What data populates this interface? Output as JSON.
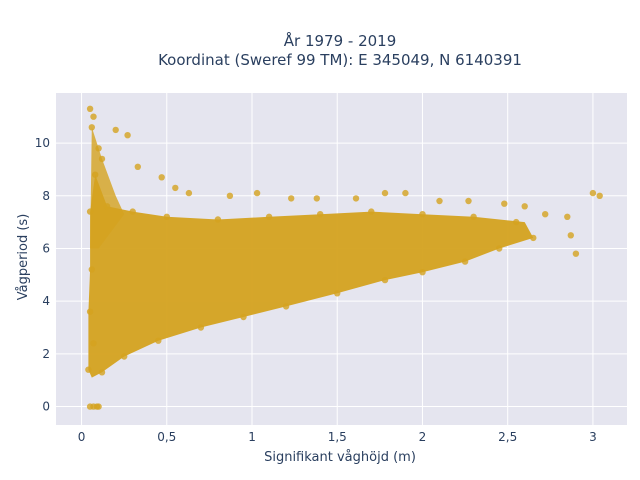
{
  "chart_data": {
    "type": "scatter",
    "title_line1": "År 1979 - 2019",
    "title_line2": "Koordinat (Sweref 99 TM): E 345049, N 6140391",
    "xlabel": "Signifikant våghöjd (m)",
    "ylabel": "Vågperiod (s)",
    "xlim": [
      -0.15,
      3.2
    ],
    "ylim": [
      -0.7,
      11.9
    ],
    "x_ticks": [
      0,
      0.5,
      1,
      1.5,
      2,
      2.5,
      3
    ],
    "x_tick_labels": [
      "0",
      "0,5",
      "1",
      "1,5",
      "2",
      "2,5",
      "3"
    ],
    "y_ticks": [
      0,
      2,
      4,
      6,
      8,
      10
    ],
    "y_tick_labels": [
      "0",
      "2",
      "4",
      "6",
      "8",
      "10"
    ],
    "marker_color": "#D4A21F",
    "background_color": "#E5E5EF",
    "grid": true,
    "series": [
      {
        "points": [
          [
            0.05,
            11.3
          ],
          [
            0.07,
            11.0
          ],
          [
            0.06,
            10.6
          ],
          [
            0.2,
            10.5
          ],
          [
            0.27,
            10.3
          ],
          [
            0.1,
            9.8
          ],
          [
            0.12,
            9.4
          ],
          [
            0.33,
            9.1
          ],
          [
            0.47,
            8.7
          ],
          [
            0.55,
            8.3
          ],
          [
            0.63,
            8.1
          ],
          [
            0.87,
            8.0
          ],
          [
            1.03,
            8.1
          ],
          [
            1.23,
            7.9
          ],
          [
            1.38,
            7.9
          ],
          [
            1.61,
            7.9
          ],
          [
            1.78,
            8.1
          ],
          [
            1.9,
            8.1
          ],
          [
            2.1,
            7.8
          ],
          [
            2.27,
            7.8
          ],
          [
            2.48,
            7.7
          ],
          [
            2.6,
            7.6
          ],
          [
            2.72,
            7.3
          ],
          [
            2.85,
            7.2
          ],
          [
            3.0,
            8.1
          ],
          [
            3.04,
            8.0
          ],
          [
            2.87,
            6.5
          ],
          [
            2.9,
            5.8
          ],
          [
            2.65,
            6.4
          ],
          [
            2.45,
            6.0
          ],
          [
            2.25,
            5.5
          ],
          [
            2.0,
            5.1
          ],
          [
            1.78,
            4.8
          ],
          [
            1.5,
            4.3
          ],
          [
            1.2,
            3.8
          ],
          [
            0.95,
            3.4
          ],
          [
            0.7,
            3.0
          ],
          [
            0.45,
            2.5
          ],
          [
            0.25,
            1.9
          ],
          [
            0.12,
            1.3
          ],
          [
            0.04,
            1.4
          ],
          [
            0.05,
            0.0
          ],
          [
            0.07,
            0.0
          ],
          [
            0.09,
            0.0
          ],
          [
            0.1,
            0.0
          ],
          [
            0.07,
            2.4
          ],
          [
            0.05,
            3.6
          ],
          [
            0.06,
            5.2
          ],
          [
            0.05,
            7.4
          ],
          [
            0.08,
            8.8
          ],
          [
            0.15,
            7.6
          ],
          [
            0.3,
            7.4
          ],
          [
            0.5,
            7.2
          ],
          [
            0.8,
            7.1
          ],
          [
            1.1,
            7.2
          ],
          [
            1.4,
            7.3
          ],
          [
            1.7,
            7.4
          ],
          [
            2.0,
            7.3
          ],
          [
            2.3,
            7.2
          ],
          [
            2.55,
            7.0
          ]
        ]
      }
    ]
  }
}
